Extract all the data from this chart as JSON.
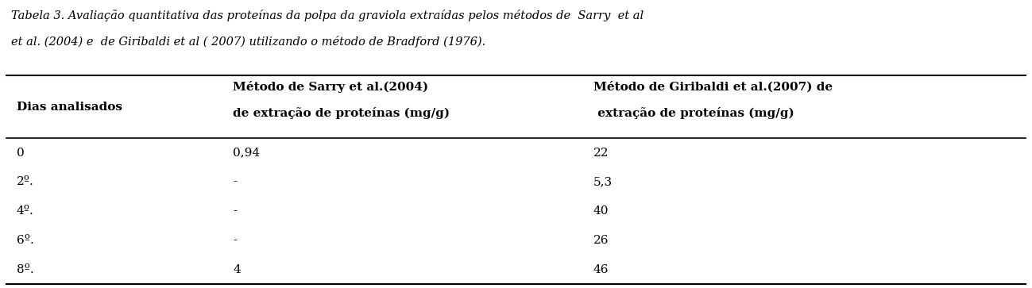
{
  "title_line1": "Tabela 3. Avaliação quantitativa das proteínas da polpa da graviola extraídas pelos métodos de  Sarry  et al",
  "title_line2": "et al. (2004) e  de Giribaldi et al ( 2007) utilizando o método de Bradford (1976).",
  "col_headers": [
    "Dias analisados",
    "Método de Sarry et al.(2004)\nde extração de proteínas (mg/g)",
    "Método de Giribaldi et al.(2007) de\n extração de proteínas (mg/g)"
  ],
  "rows": [
    [
      "0",
      "0,94",
      "22"
    ],
    [
      "2º.",
      "-",
      "5,3"
    ],
    [
      "4º.",
      "-",
      "40"
    ],
    [
      "6º.",
      "-",
      "26"
    ],
    [
      "8º.",
      "4",
      "46"
    ]
  ],
  "bg_color": "#ffffff",
  "text_color": "#000000",
  "font_size": 11,
  "header_font_size": 11,
  "title_font_size": 10.5
}
